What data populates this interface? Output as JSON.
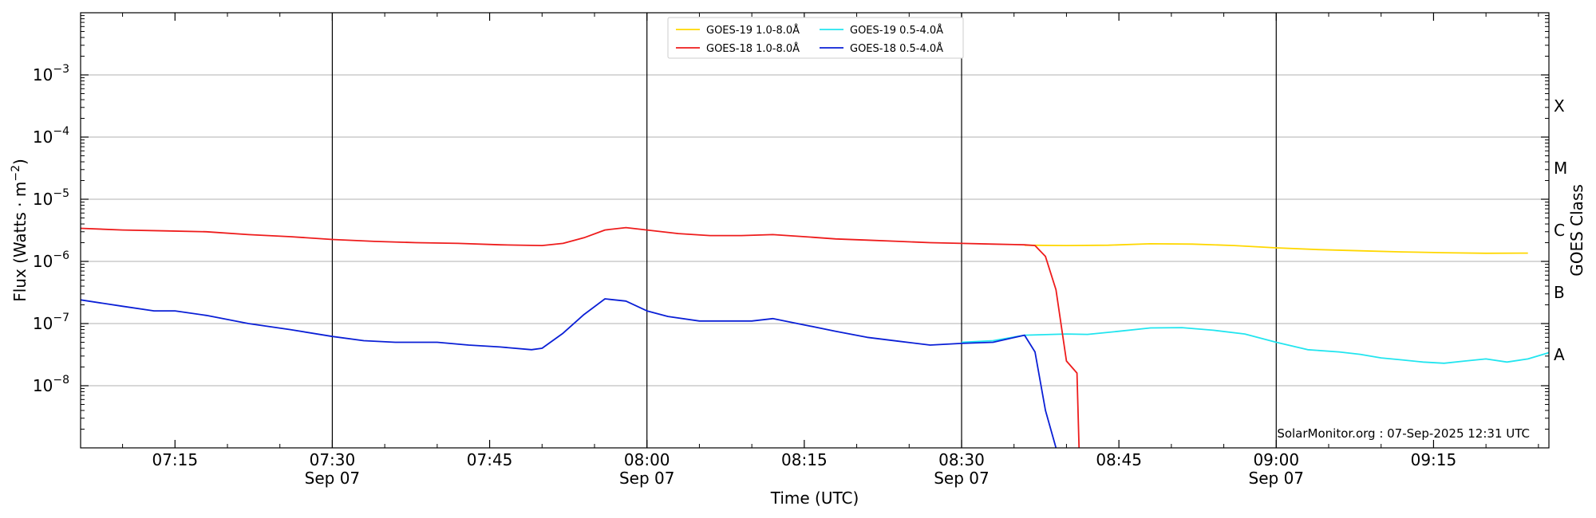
{
  "chart_data": {
    "type": "line",
    "xlabel": "Time (UTC)",
    "ylabel_main": "Flux (Watts · m",
    "ylabel_sup": "−2",
    "ylabel_close": ")",
    "y2label": "GOES Class",
    "yscale": "log",
    "ylim": [
      1e-09,
      0.01
    ],
    "xlim": [
      "07:06",
      "09:26"
    ],
    "grid": "horizontal at decades",
    "legend_position": "top-center",
    "yticks": [
      {
        "value": 0.001,
        "base": "10",
        "exp": "−3"
      },
      {
        "value": 0.0001,
        "base": "10",
        "exp": "−4"
      },
      {
        "value": 1e-05,
        "base": "10",
        "exp": "−5"
      },
      {
        "value": 1e-06,
        "base": "10",
        "exp": "−6"
      },
      {
        "value": 1e-07,
        "base": "10",
        "exp": "−7"
      },
      {
        "value": 1e-08,
        "base": "10",
        "exp": "−8"
      }
    ],
    "goes_classes": [
      {
        "label": "X",
        "value": 0.0001
      },
      {
        "label": "M",
        "value": 1e-05
      },
      {
        "label": "C",
        "value": 1e-06
      },
      {
        "label": "B",
        "value": 1e-07
      },
      {
        "label": "A",
        "value": 1e-08
      }
    ],
    "xticks": [
      {
        "time": "07:15",
        "label": "07:15",
        "date": ""
      },
      {
        "time": "07:30",
        "label": "07:30",
        "date": "Sep 07"
      },
      {
        "time": "07:45",
        "label": "07:45",
        "date": ""
      },
      {
        "time": "08:00",
        "label": "08:00",
        "date": "Sep 07"
      },
      {
        "time": "08:15",
        "label": "08:15",
        "date": ""
      },
      {
        "time": "08:30",
        "label": "08:30",
        "date": "Sep 07"
      },
      {
        "time": "08:45",
        "label": "08:45",
        "date": ""
      },
      {
        "time": "09:00",
        "label": "09:00",
        "date": "Sep 07"
      },
      {
        "time": "09:15",
        "label": "09:15",
        "date": ""
      }
    ],
    "vlines": [
      "07:30",
      "08:00",
      "08:30",
      "09:00"
    ],
    "credit": "SolarMonitor.org : 07-Sep-2025 12:31 UTC",
    "series": [
      {
        "name": "GOES-19 1.0-8.0Å",
        "color": "#ffd700",
        "points": [
          [
            "08:36",
            1.82e-06
          ],
          [
            "08:40",
            1.8e-06
          ],
          [
            "08:44",
            1.82e-06
          ],
          [
            "08:48",
            1.92e-06
          ],
          [
            "08:52",
            1.9e-06
          ],
          [
            "08:56",
            1.8e-06
          ],
          [
            "09:00",
            1.65e-06
          ],
          [
            "09:04",
            1.55e-06
          ],
          [
            "09:08",
            1.48e-06
          ],
          [
            "09:12",
            1.42e-06
          ],
          [
            "09:16",
            1.38e-06
          ],
          [
            "09:20",
            1.35e-06
          ],
          [
            "09:24",
            1.36e-06
          ]
        ]
      },
      {
        "name": "GOES-18 1.0-8.0Å",
        "color": "#ee1c1c",
        "points": [
          [
            "07:06",
            3.4e-06
          ],
          [
            "07:10",
            3.2e-06
          ],
          [
            "07:14",
            3.1e-06
          ],
          [
            "07:18",
            3e-06
          ],
          [
            "07:22",
            2.7e-06
          ],
          [
            "07:26",
            2.5e-06
          ],
          [
            "07:30",
            2.25e-06
          ],
          [
            "07:34",
            2.1e-06
          ],
          [
            "07:38",
            2e-06
          ],
          [
            "07:42",
            1.95e-06
          ],
          [
            "07:46",
            1.85e-06
          ],
          [
            "07:50",
            1.8e-06
          ],
          [
            "07:52",
            1.95e-06
          ],
          [
            "07:54",
            2.4e-06
          ],
          [
            "07:56",
            3.2e-06
          ],
          [
            "07:58",
            3.5e-06
          ],
          [
            "08:00",
            3.2e-06
          ],
          [
            "08:03",
            2.8e-06
          ],
          [
            "08:06",
            2.6e-06
          ],
          [
            "08:09",
            2.6e-06
          ],
          [
            "08:12",
            2.7e-06
          ],
          [
            "08:15",
            2.5e-06
          ],
          [
            "08:18",
            2.3e-06
          ],
          [
            "08:21",
            2.2e-06
          ],
          [
            "08:24",
            2.1e-06
          ],
          [
            "08:27",
            2e-06
          ],
          [
            "08:30",
            1.95e-06
          ],
          [
            "08:33",
            1.9e-06
          ],
          [
            "08:36",
            1.85e-06
          ],
          [
            "08:37",
            1.8e-06
          ],
          [
            "08:38",
            1.2e-06
          ],
          [
            "08:39",
            3.5e-07
          ],
          [
            "08:40",
            2.5e-08
          ],
          [
            "08:41",
            1.6e-08
          ],
          [
            "08:41.2",
            1e-09
          ]
        ]
      },
      {
        "name": "GOES-19 0.5-4.0Å",
        "color": "#22e5ef",
        "points": [
          [
            "08:30",
            5e-08
          ],
          [
            "08:33",
            5.3e-08
          ],
          [
            "08:36",
            6.5e-08
          ],
          [
            "08:40",
            6.8e-08
          ],
          [
            "08:42",
            6.7e-08
          ],
          [
            "08:45",
            7.5e-08
          ],
          [
            "08:48",
            8.5e-08
          ],
          [
            "08:51",
            8.6e-08
          ],
          [
            "08:54",
            7.8e-08
          ],
          [
            "08:57",
            6.8e-08
          ],
          [
            "09:00",
            5e-08
          ],
          [
            "09:03",
            3.8e-08
          ],
          [
            "09:06",
            3.5e-08
          ],
          [
            "09:08",
            3.2e-08
          ],
          [
            "09:10",
            2.8e-08
          ],
          [
            "09:12",
            2.6e-08
          ],
          [
            "09:14",
            2.4e-08
          ],
          [
            "09:16",
            2.3e-08
          ],
          [
            "09:18",
            2.5e-08
          ],
          [
            "09:20",
            2.7e-08
          ],
          [
            "09:22",
            2.4e-08
          ],
          [
            "09:24",
            2.7e-08
          ],
          [
            "09:26",
            3.4e-08
          ]
        ]
      },
      {
        "name": "GOES-18 0.5-4.0Å",
        "color": "#0a1fd6",
        "points": [
          [
            "07:06",
            2.4e-07
          ],
          [
            "07:10",
            1.9e-07
          ],
          [
            "07:13",
            1.6e-07
          ],
          [
            "07:15",
            1.6e-07
          ],
          [
            "07:18",
            1.35e-07
          ],
          [
            "07:22",
            1e-07
          ],
          [
            "07:26",
            8e-08
          ],
          [
            "07:30",
            6.2e-08
          ],
          [
            "07:33",
            5.3e-08
          ],
          [
            "07:36",
            5e-08
          ],
          [
            "07:40",
            5e-08
          ],
          [
            "07:43",
            4.5e-08
          ],
          [
            "07:46",
            4.2e-08
          ],
          [
            "07:49",
            3.8e-08
          ],
          [
            "07:50",
            4e-08
          ],
          [
            "07:52",
            7e-08
          ],
          [
            "07:54",
            1.4e-07
          ],
          [
            "07:56",
            2.5e-07
          ],
          [
            "07:58",
            2.3e-07
          ],
          [
            "08:00",
            1.6e-07
          ],
          [
            "08:02",
            1.3e-07
          ],
          [
            "08:05",
            1.1e-07
          ],
          [
            "08:08",
            1.1e-07
          ],
          [
            "08:10",
            1.1e-07
          ],
          [
            "08:12",
            1.2e-07
          ],
          [
            "08:15",
            9.5e-08
          ],
          [
            "08:18",
            7.5e-08
          ],
          [
            "08:21",
            6e-08
          ],
          [
            "08:24",
            5.2e-08
          ],
          [
            "08:27",
            4.5e-08
          ],
          [
            "08:30",
            4.8e-08
          ],
          [
            "08:33",
            5e-08
          ],
          [
            "08:36",
            6.5e-08
          ],
          [
            "08:37",
            3.5e-08
          ],
          [
            "08:38",
            4e-09
          ],
          [
            "08:39",
            1e-09
          ]
        ]
      }
    ]
  }
}
